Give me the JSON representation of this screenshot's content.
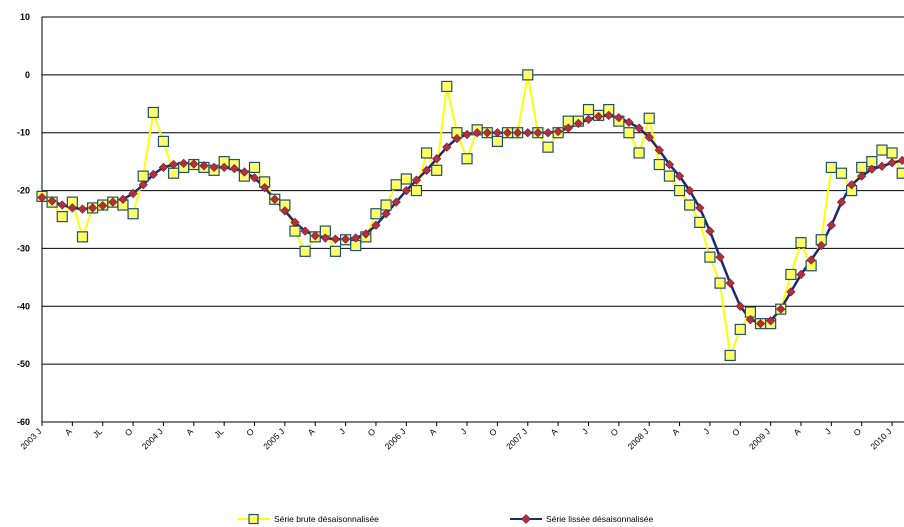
{
  "chart_data": {
    "type": "line",
    "title": "",
    "xlabel": "",
    "ylabel": "",
    "ylim": [
      -60,
      10
    ],
    "yticks": [
      10,
      0,
      -10,
      -20,
      -30,
      -40,
      -50,
      -60
    ],
    "grid": "horizontal",
    "legend_position": "bottom",
    "x_tick_labels": [
      "2003 J",
      "A",
      "JL",
      "O",
      "2004 J",
      "A",
      "JL",
      "O",
      "2005 J",
      "A",
      "J",
      "O",
      "2006 J",
      "A",
      "J",
      "O",
      "2007 J",
      "A",
      "J",
      "O",
      "2008 J",
      "A",
      "J",
      "O",
      "2009 J",
      "A",
      "J",
      "O",
      "2010 J",
      "A"
    ],
    "series": [
      {
        "name": "Série brute désaisonnalisée",
        "color": "#ffff00",
        "marker": "square",
        "marker_fill": "#ffff66",
        "marker_edge": "#1f4e79",
        "values": [
          -21,
          -22,
          -24.5,
          -22,
          -28,
          -23,
          -22.5,
          -22,
          -22.5,
          -24,
          -17.5,
          -6.5,
          -11.5,
          -17,
          -16,
          -15.5,
          -16,
          -16.5,
          -15,
          -15.5,
          -17.5,
          -16,
          -18.5,
          -21.5,
          -22.5,
          -27,
          -30.5,
          -28,
          -27,
          -30.5,
          -28.5,
          -29.5,
          -28,
          -24,
          -22.5,
          -19,
          -18,
          -20,
          -13.5,
          -16.5,
          -2,
          -10,
          -14.5,
          -9.5,
          -10,
          -11.5,
          -10,
          -10,
          0,
          -10,
          -12.5,
          -10,
          -8,
          -8,
          -6,
          -7,
          -6,
          -8,
          -10,
          -13.5,
          -7.5,
          -15.5,
          -17.5,
          -20,
          -22.5,
          -25.5,
          -31.5,
          -36,
          -48.5,
          -44,
          -41,
          -43,
          -43,
          -40.5,
          -34.5,
          -29,
          -33,
          -28.5,
          -16,
          -17,
          -20,
          -16,
          -15,
          -13,
          -13.5,
          -17,
          -16,
          -10
        ]
      },
      {
        "name": "Série lissée désaisonnalisée",
        "color": "#1f2a6b",
        "marker": "diamond",
        "marker_fill": "#b03040",
        "values": [
          -21.2,
          -21.8,
          -22.5,
          -23,
          -23.2,
          -23,
          -22.6,
          -22,
          -21.5,
          -20.5,
          -19,
          -17.2,
          -16,
          -15.5,
          -15.3,
          -15.4,
          -15.7,
          -16,
          -16,
          -16.2,
          -16.8,
          -17.8,
          -19.5,
          -21.5,
          -23.5,
          -25.5,
          -27,
          -27.8,
          -28.2,
          -28.4,
          -28.4,
          -28.2,
          -27.5,
          -26,
          -24,
          -22,
          -20,
          -18.2,
          -16.5,
          -14.5,
          -12.5,
          -11,
          -10.3,
          -10,
          -10,
          -10,
          -10,
          -10,
          -10,
          -10,
          -10,
          -9.8,
          -9.2,
          -8.4,
          -7.7,
          -7.2,
          -7,
          -7.4,
          -8.2,
          -9.2,
          -10.8,
          -13,
          -15.5,
          -17.5,
          -20,
          -23,
          -27,
          -31.5,
          -36,
          -40,
          -42.3,
          -43,
          -42.5,
          -40.5,
          -37.5,
          -34.5,
          -32,
          -29.5,
          -26,
          -22,
          -19,
          -17.5,
          -16.3,
          -15.8,
          -15.2,
          -14.8
        ]
      }
    ]
  }
}
